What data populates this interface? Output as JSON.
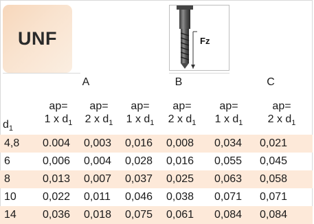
{
  "logo_text": "UNF",
  "fz_label": "Fz",
  "groups": [
    "A",
    "B",
    "C"
  ],
  "row_header": {
    "base": "d",
    "sub": "1"
  },
  "col_header": {
    "top": "ap=",
    "factors": [
      "1 x d",
      "2 x d",
      "1 x d",
      "2 x d",
      "1 x d",
      "2 x d"
    ],
    "sub": "1"
  },
  "rows": [
    {
      "d1": "4,8",
      "values": [
        "0.004",
        "0,003",
        "0,016",
        "0,008",
        "0,034",
        "0,021"
      ],
      "banded": true
    },
    {
      "d1": "6",
      "values": [
        "0,006",
        "0,004",
        "0,028",
        "0,016",
        "0,055",
        "0,045"
      ],
      "banded": false
    },
    {
      "d1": "8",
      "values": [
        "0,013",
        "0,007",
        "0,037",
        "0,025",
        "0,063",
        "0,058"
      ],
      "banded": true
    },
    {
      "d1": "10",
      "values": [
        "0,022",
        "0,011",
        "0,046",
        "0,038",
        "0,071",
        "0,071"
      ],
      "banded": false
    },
    {
      "d1": "14",
      "values": [
        "0,036",
        "0,018",
        "0,075",
        "0,061",
        "0,084",
        "0,084"
      ],
      "banded": true
    }
  ],
  "band_color": "#fde9d9"
}
